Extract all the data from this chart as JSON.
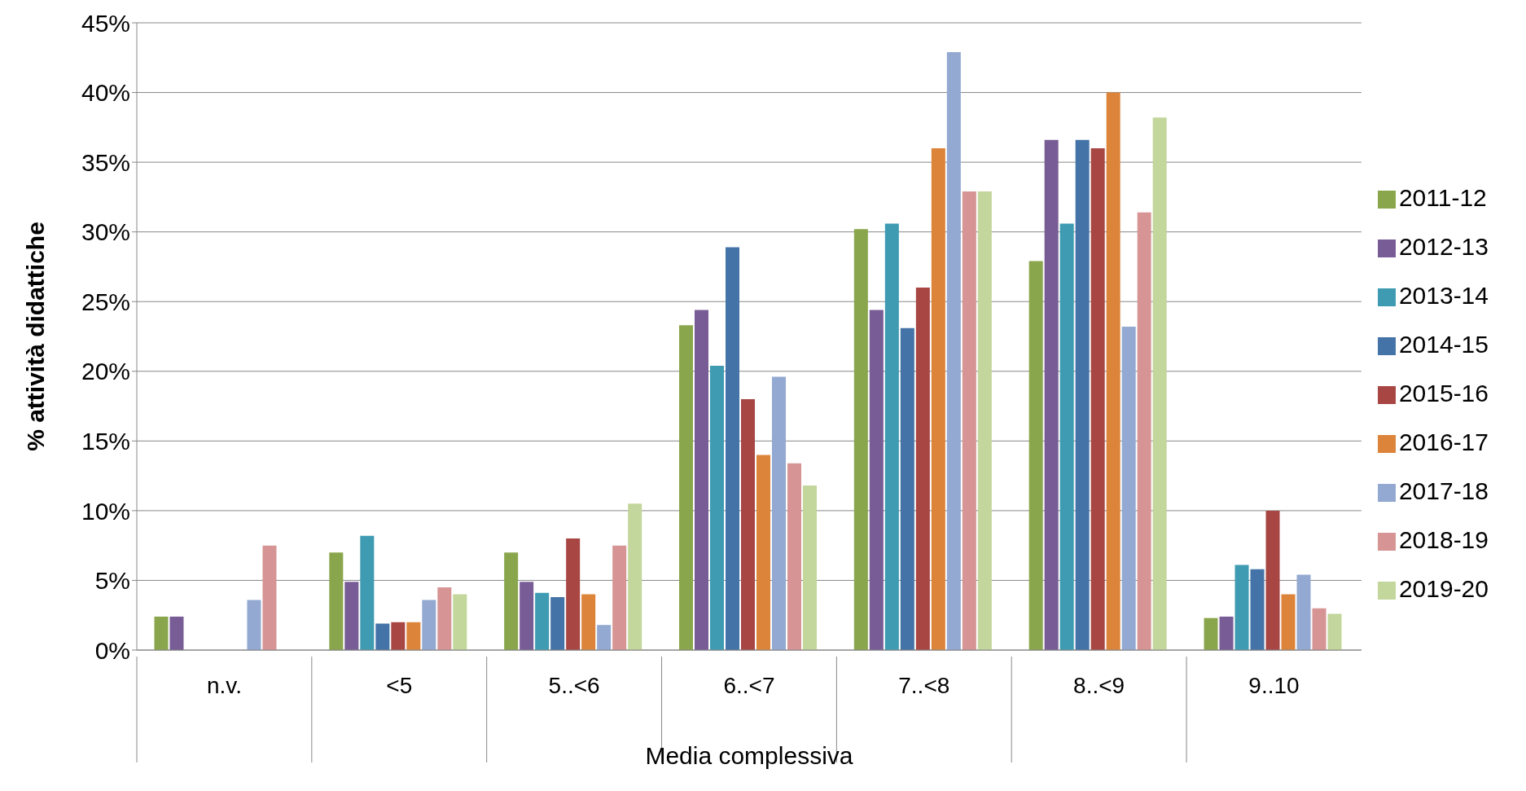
{
  "chart_data": {
    "type": "bar",
    "xlabel": "Media complessiva",
    "ylabel": "% attività didattiche",
    "categories": [
      "n.v.",
      "<5",
      "5..<6",
      "6..<7",
      "7..<8",
      "8..<9",
      "9..10"
    ],
    "series": [
      {
        "name": "2011-12",
        "color": "#8aa64c",
        "values": [
          2.4,
          7.0,
          7.0,
          23.3,
          30.2,
          27.9,
          2.3
        ]
      },
      {
        "name": "2012-13",
        "color": "#775c96",
        "values": [
          2.4,
          4.9,
          4.9,
          24.4,
          24.4,
          36.6,
          2.4
        ]
      },
      {
        "name": "2013-14",
        "color": "#3e9bb1",
        "values": [
          0,
          8.2,
          4.1,
          20.4,
          30.6,
          30.6,
          6.1
        ]
      },
      {
        "name": "2014-15",
        "color": "#4473a8",
        "values": [
          0,
          1.9,
          3.8,
          28.9,
          23.1,
          36.6,
          5.8
        ]
      },
      {
        "name": "2015-16",
        "color": "#a84644",
        "values": [
          0,
          2.0,
          8.0,
          18.0,
          26.0,
          36.0,
          10.0
        ]
      },
      {
        "name": "2016-17",
        "color": "#dd843b",
        "values": [
          0,
          2.0,
          4.0,
          14.0,
          36.0,
          40.0,
          4.0
        ]
      },
      {
        "name": "2017-18",
        "color": "#93a9d1",
        "values": [
          3.6,
          3.6,
          1.8,
          19.6,
          42.9,
          23.2,
          5.4
        ]
      },
      {
        "name": "2018-19",
        "color": "#d69594",
        "values": [
          7.5,
          4.5,
          7.5,
          13.4,
          32.9,
          31.4,
          3.0
        ]
      },
      {
        "name": "2019-20",
        "color": "#c3d69b",
        "values": [
          0,
          4.0,
          10.5,
          11.8,
          32.9,
          38.2,
          2.6
        ]
      }
    ],
    "ylim": [
      0,
      45
    ],
    "yticks": [
      {
        "value": 0,
        "label": "0%"
      },
      {
        "value": 5,
        "label": "5%"
      },
      {
        "value": 10,
        "label": "10%"
      },
      {
        "value": 15,
        "label": "15%"
      },
      {
        "value": 20,
        "label": "20%"
      },
      {
        "value": 25,
        "label": "25%"
      },
      {
        "value": 30,
        "label": "30%"
      },
      {
        "value": 35,
        "label": "35%"
      },
      {
        "value": 40,
        "label": "40%"
      },
      {
        "value": 45,
        "label": "45%"
      }
    ],
    "grid": "y",
    "legend": "right"
  }
}
